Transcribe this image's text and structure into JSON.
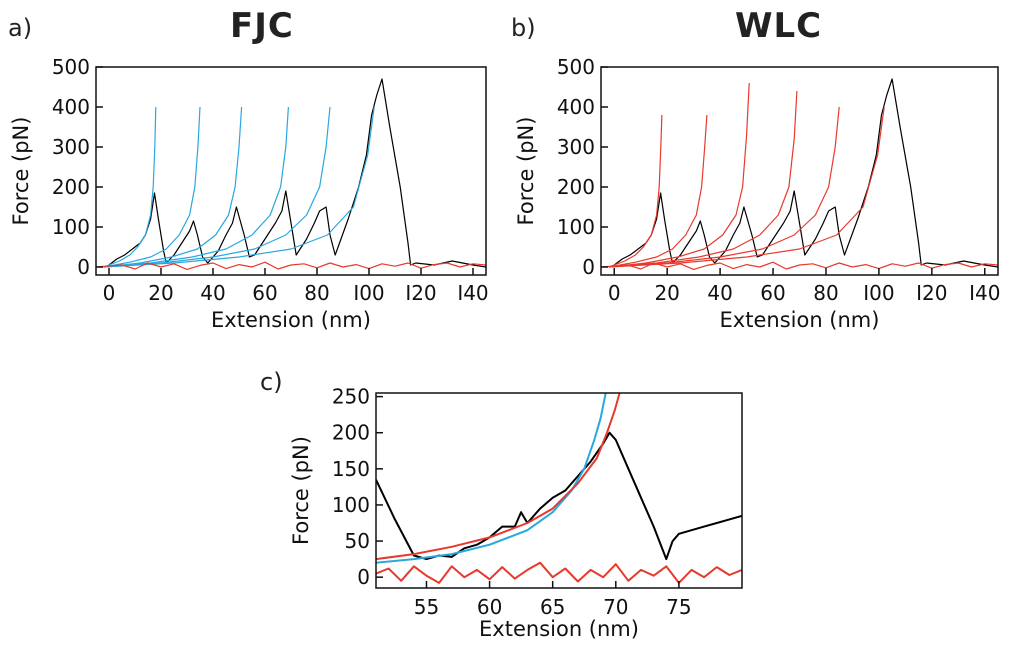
{
  "chart_data": [
    {
      "type": "line",
      "panel_label": "a)",
      "title": "FJC",
      "xlabel": "Extension (nm)",
      "ylabel": "Force (pN)",
      "xlim": [
        -5,
        145
      ],
      "ylim": [
        -20,
        500
      ],
      "xticks": [
        0,
        20,
        40,
        60,
        80,
        100,
        120,
        140
      ],
      "xtick_labels": [
        "0",
        "20",
        "40",
        "60",
        "80",
        "I00",
        "I20",
        "I40"
      ],
      "yticks": [
        0,
        100,
        200,
        300,
        400,
        500
      ],
      "ytick_labels": [
        "0",
        "100",
        "200",
        "300",
        "400",
        "500"
      ],
      "grid": false,
      "series": [
        {
          "color": "#000000",
          "x": [
            -1,
            3,
            6,
            9,
            12,
            14,
            16,
            17.5,
            19,
            21,
            22,
            25,
            28,
            31,
            32.5,
            34,
            36,
            38,
            42,
            45,
            47.5,
            49,
            52,
            54,
            56,
            60,
            64,
            66.5,
            68,
            70,
            72,
            76,
            79,
            81,
            83.5,
            85,
            87,
            92,
            96,
            99,
            101,
            103,
            105,
            108,
            112,
            115,
            116,
            118,
            125,
            132,
            140,
            145
          ],
          "y": [
            0,
            20,
            30,
            45,
            60,
            80,
            120,
            185,
            120,
            40,
            10,
            30,
            60,
            90,
            115,
            80,
            25,
            10,
            40,
            80,
            110,
            150,
            80,
            25,
            30,
            70,
            110,
            140,
            190,
            110,
            30,
            70,
            110,
            140,
            150,
            80,
            30,
            120,
            200,
            280,
            380,
            430,
            470,
            350,
            200,
            60,
            5,
            10,
            5,
            15,
            5,
            0
          ]
        },
        {
          "color": "#29a7e1",
          "x": [
            -2,
            4,
            8,
            11,
            14,
            16,
            17,
            17.6,
            18
          ],
          "y": [
            0,
            15,
            30,
            50,
            80,
            130,
            200,
            300,
            400
          ]
        },
        {
          "color": "#29a7e1",
          "x": [
            -2,
            8,
            16,
            22,
            27,
            31,
            33,
            34.2,
            35
          ],
          "y": [
            0,
            12,
            25,
            45,
            80,
            130,
            200,
            300,
            400
          ]
        },
        {
          "color": "#29a7e1",
          "x": [
            -2,
            12,
            24,
            34,
            41,
            46,
            48.5,
            50,
            51
          ],
          "y": [
            0,
            10,
            25,
            45,
            80,
            130,
            200,
            300,
            400
          ]
        },
        {
          "color": "#29a7e1",
          "x": [
            -2,
            16,
            32,
            45,
            55,
            62,
            66,
            68,
            69
          ],
          "y": [
            0,
            10,
            25,
            45,
            80,
            130,
            200,
            300,
            400
          ]
        },
        {
          "color": "#29a7e1",
          "x": [
            -2,
            20,
            40,
            56,
            68,
            76,
            81,
            83.5,
            85
          ],
          "y": [
            0,
            10,
            25,
            45,
            80,
            130,
            200,
            300,
            400
          ]
        },
        {
          "color": "#29a7e1",
          "x": [
            -2,
            25,
            50,
            70,
            84,
            94,
            99.5,
            102
          ],
          "y": [
            0,
            10,
            25,
            45,
            80,
            150,
            280,
            400
          ]
        },
        {
          "color": "#e8392c",
          "x": [
            -5,
            5,
            10,
            15,
            20,
            25,
            30,
            35,
            40,
            45,
            50,
            55,
            60,
            65,
            70,
            75,
            80,
            85,
            90,
            95,
            100,
            105,
            110,
            115,
            120,
            125,
            130,
            135,
            140,
            145
          ],
          "y": [
            0,
            5,
            -5,
            10,
            0,
            8,
            -6,
            4,
            10,
            -4,
            6,
            0,
            12,
            -5,
            5,
            8,
            -2,
            10,
            0,
            6,
            -4,
            8,
            2,
            10,
            -3,
            6,
            10,
            0,
            8,
            5
          ]
        }
      ]
    },
    {
      "type": "line",
      "panel_label": "b)",
      "title": "WLC",
      "xlabel": "Extension (nm)",
      "ylabel": "Force (pN)",
      "xlim": [
        -5,
        145
      ],
      "ylim": [
        -20,
        500
      ],
      "xticks": [
        0,
        20,
        40,
        60,
        80,
        100,
        120,
        140
      ],
      "xtick_labels": [
        "0",
        "20",
        "40",
        "60",
        "80",
        "I00",
        "I20",
        "I40"
      ],
      "yticks": [
        0,
        100,
        200,
        300,
        400,
        500
      ],
      "ytick_labels": [
        "0",
        "100",
        "200",
        "300",
        "400",
        "500"
      ],
      "grid": false,
      "series": [
        {
          "color": "#000000",
          "x": [
            -1,
            3,
            6,
            9,
            12,
            14,
            16,
            17.5,
            19,
            21,
            22,
            25,
            28,
            31,
            32.5,
            34,
            36,
            38,
            42,
            45,
            47.5,
            49,
            52,
            54,
            56,
            60,
            64,
            66.5,
            68,
            70,
            72,
            76,
            79,
            81,
            83.5,
            85,
            87,
            92,
            96,
            99,
            101,
            103,
            105,
            108,
            112,
            115,
            116,
            118,
            125,
            132,
            140,
            145
          ],
          "y": [
            0,
            20,
            30,
            45,
            60,
            80,
            120,
            185,
            120,
            40,
            10,
            30,
            60,
            90,
            115,
            80,
            25,
            10,
            40,
            80,
            110,
            150,
            80,
            25,
            30,
            70,
            110,
            140,
            190,
            110,
            30,
            70,
            110,
            140,
            150,
            80,
            30,
            120,
            200,
            280,
            380,
            430,
            470,
            350,
            200,
            60,
            5,
            10,
            5,
            15,
            5,
            0
          ]
        },
        {
          "color": "#e8392c",
          "x": [
            -2,
            4,
            8,
            11,
            14,
            16,
            17,
            17.6,
            18
          ],
          "y": [
            0,
            15,
            30,
            50,
            80,
            130,
            200,
            300,
            380
          ]
        },
        {
          "color": "#e8392c",
          "x": [
            -2,
            8,
            16,
            22,
            27,
            31,
            33,
            34.2,
            35
          ],
          "y": [
            0,
            12,
            25,
            45,
            80,
            130,
            200,
            300,
            380
          ]
        },
        {
          "color": "#e8392c",
          "x": [
            -2,
            12,
            24,
            34,
            41,
            46,
            48.5,
            50,
            51
          ],
          "y": [
            0,
            10,
            25,
            45,
            80,
            130,
            200,
            330,
            460
          ]
        },
        {
          "color": "#e8392c",
          "x": [
            -2,
            16,
            32,
            45,
            55,
            62,
            66,
            68,
            69
          ],
          "y": [
            0,
            10,
            25,
            45,
            80,
            130,
            200,
            320,
            440
          ]
        },
        {
          "color": "#e8392c",
          "x": [
            -2,
            20,
            40,
            56,
            68,
            76,
            81,
            83.5,
            85
          ],
          "y": [
            0,
            10,
            25,
            45,
            80,
            130,
            200,
            300,
            400
          ]
        },
        {
          "color": "#e8392c",
          "x": [
            -2,
            25,
            50,
            70,
            84,
            94,
            99.5,
            102
          ],
          "y": [
            0,
            10,
            25,
            45,
            80,
            150,
            280,
            400
          ]
        },
        {
          "color": "#e8392c",
          "x": [
            -5,
            5,
            10,
            15,
            20,
            25,
            30,
            35,
            40,
            45,
            50,
            55,
            60,
            65,
            70,
            75,
            80,
            85,
            90,
            95,
            100,
            105,
            110,
            115,
            120,
            125,
            130,
            135,
            140,
            145
          ],
          "y": [
            0,
            5,
            -5,
            10,
            0,
            8,
            -6,
            4,
            10,
            -4,
            6,
            0,
            12,
            -5,
            5,
            8,
            -2,
            10,
            0,
            6,
            -4,
            8,
            2,
            10,
            -3,
            6,
            10,
            0,
            8,
            5
          ]
        }
      ]
    },
    {
      "type": "line",
      "panel_label": "c)",
      "title": "",
      "xlabel": "Extension (nm)",
      "ylabel": "Force (pN)",
      "xlim": [
        51,
        80
      ],
      "ylim": [
        -15,
        255
      ],
      "xticks": [
        55,
        60,
        65,
        70,
        75
      ],
      "xtick_labels": [
        "55",
        "60",
        "65",
        "70",
        "75"
      ],
      "yticks": [
        0,
        50,
        100,
        150,
        200,
        250
      ],
      "ytick_labels": [
        "0",
        "50",
        "100",
        "150",
        "200",
        "250"
      ],
      "grid": false,
      "series": [
        {
          "color": "#000000",
          "x": [
            51,
            52.5,
            54,
            55,
            56,
            57,
            58,
            59,
            60,
            61,
            62,
            62.5,
            63,
            64,
            65,
            66,
            67,
            68,
            69,
            69.5,
            70,
            71,
            72,
            73,
            74,
            74.5,
            75,
            76,
            77,
            78,
            79,
            80
          ],
          "y": [
            135,
            80,
            30,
            25,
            30,
            28,
            40,
            45,
            55,
            70,
            70,
            90,
            75,
            95,
            110,
            120,
            140,
            160,
            185,
            200,
            190,
            150,
            110,
            70,
            25,
            50,
            60,
            65,
            70,
            75,
            80,
            85
          ]
        },
        {
          "color": "#29a7e1",
          "x": [
            51,
            54,
            57,
            60,
            63,
            65,
            66.5,
            67.5,
            68.3,
            68.8,
            69.2
          ],
          "y": [
            20,
            25,
            32,
            45,
            65,
            90,
            120,
            150,
            190,
            220,
            255
          ]
        },
        {
          "color": "#e8392c",
          "x": [
            51,
            54,
            57,
            60,
            63,
            65,
            67,
            68.5,
            69.3,
            69.9,
            70.3
          ],
          "y": [
            25,
            32,
            42,
            55,
            75,
            95,
            130,
            165,
            200,
            230,
            255
          ]
        },
        {
          "color": "#e8392c",
          "x": [
            51,
            52,
            53,
            54,
            55,
            56,
            57,
            58,
            59,
            60,
            61,
            62,
            63,
            64,
            65,
            66,
            67,
            68,
            69,
            70,
            71,
            72,
            73,
            74,
            75,
            76,
            77,
            78,
            79,
            80
          ],
          "y": [
            5,
            12,
            -5,
            15,
            2,
            -8,
            15,
            0,
            10,
            -3,
            14,
            -2,
            10,
            20,
            0,
            12,
            -6,
            10,
            0,
            18,
            -5,
            10,
            2,
            15,
            -8,
            10,
            0,
            14,
            3,
            10
          ]
        }
      ]
    }
  ]
}
